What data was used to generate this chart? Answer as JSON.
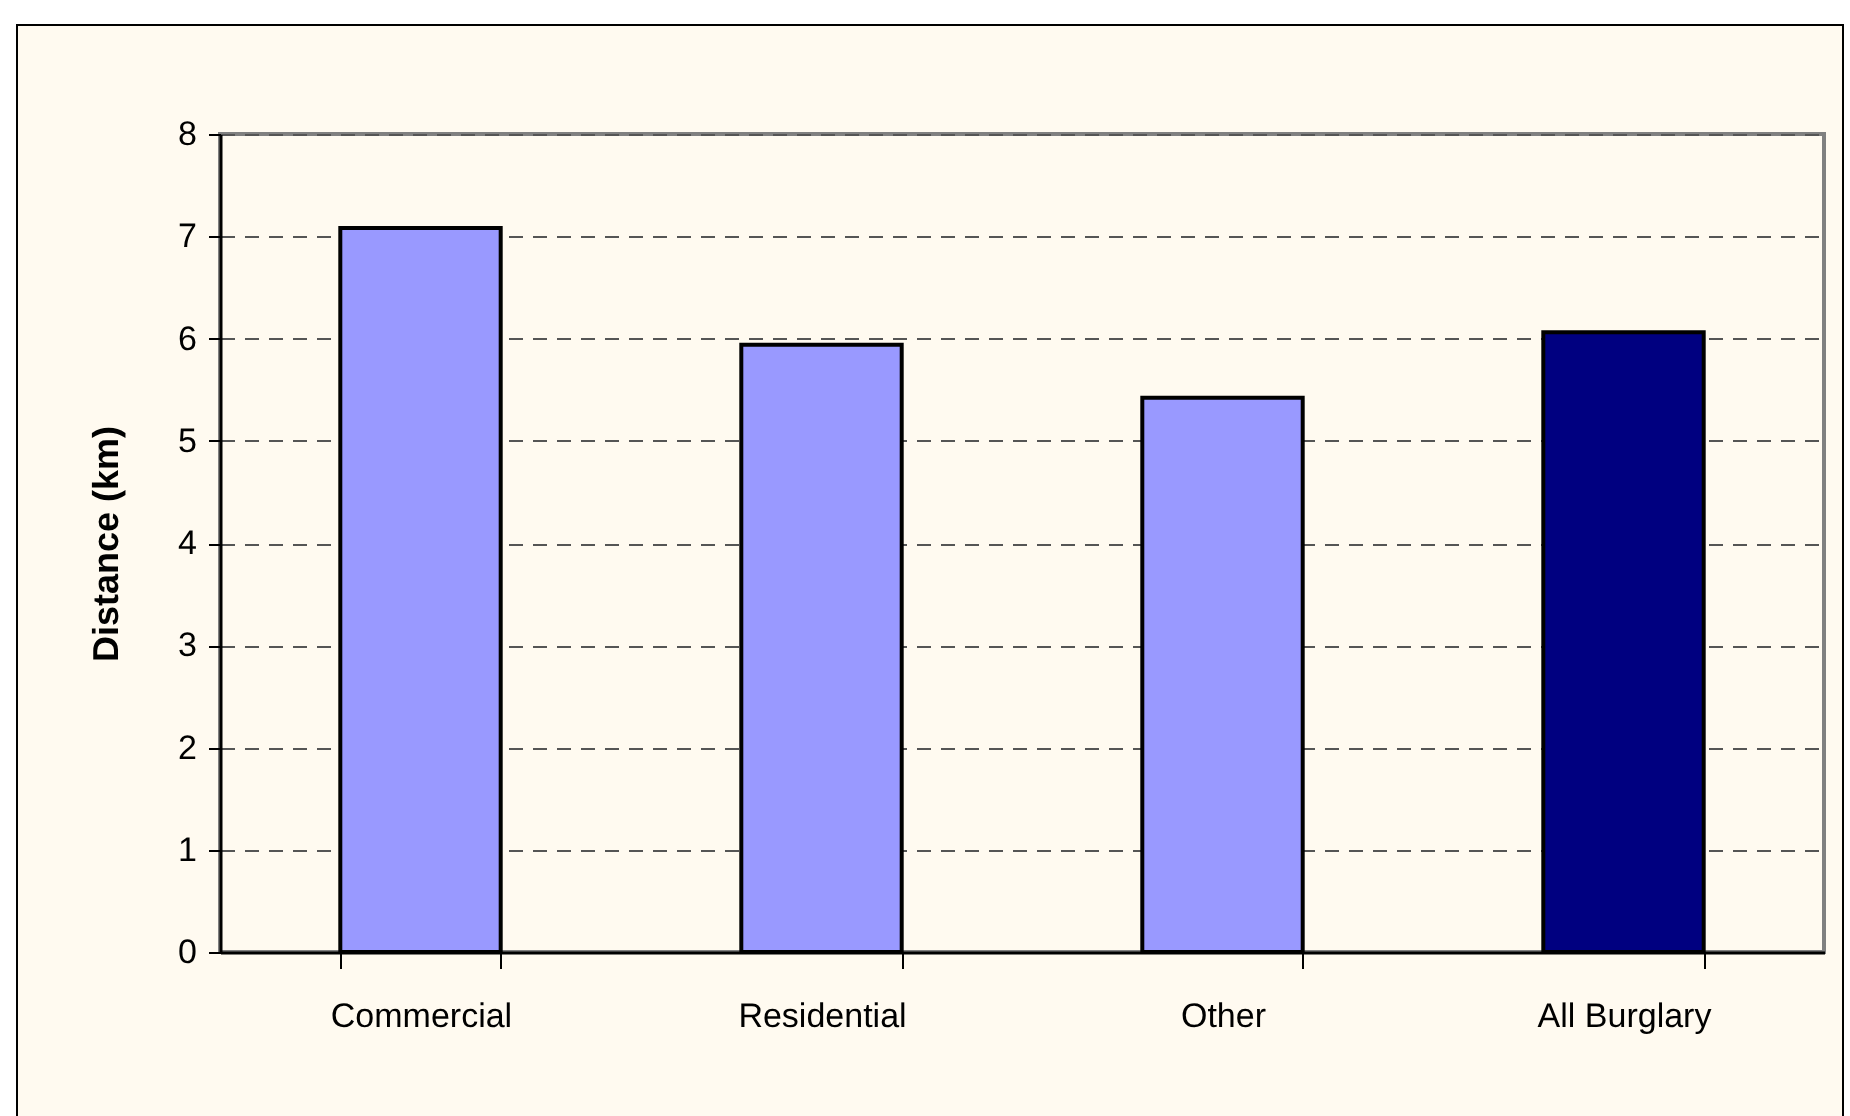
{
  "chart_data": {
    "type": "bar",
    "ylabel": "Distance (km)",
    "categories": [
      "Commercial",
      "Residential",
      "Other",
      "All Burglary"
    ],
    "values": [
      7.08,
      5.94,
      5.42,
      6.06
    ],
    "colors": [
      "#9999ff",
      "#9999ff",
      "#9999ff",
      "#000080"
    ],
    "ylim": [
      0,
      8
    ],
    "yticks": [
      0,
      1,
      2,
      3,
      4,
      5,
      6,
      7,
      8
    ],
    "grid": "y"
  }
}
